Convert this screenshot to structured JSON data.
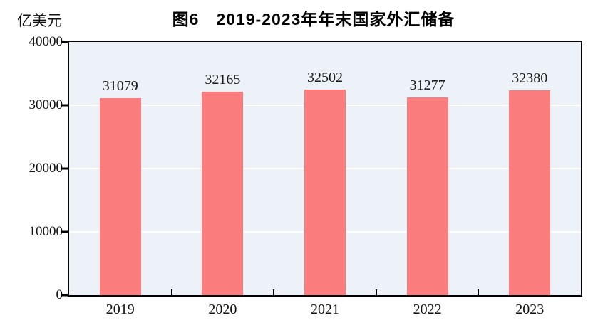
{
  "title": "图6　2019-2023年年末国家外汇储备",
  "unit_label": "亿美元",
  "chart_data": {
    "type": "bar",
    "categories": [
      "2019",
      "2020",
      "2021",
      "2022",
      "2023"
    ],
    "values": [
      31079,
      32165,
      32502,
      31277,
      32380
    ],
    "title": "图6　2019-2023年年末国家外汇储备",
    "xlabel": "",
    "ylabel": "亿美元",
    "ylim": [
      0,
      40000
    ],
    "yticks": [
      0,
      10000,
      20000,
      30000,
      40000
    ],
    "grid": true,
    "gridline_color": "#ffffff",
    "legend": "none",
    "bar_color": "#fa7c7c",
    "plot_background": "#ecf2f7",
    "axis_color": "#000000",
    "data_labels_shown": true
  }
}
